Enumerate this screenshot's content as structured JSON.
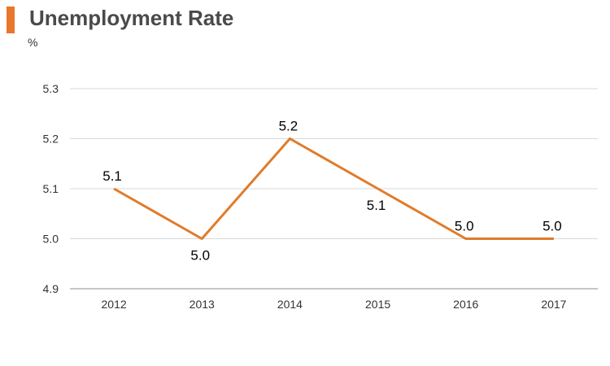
{
  "chart_data": {
    "type": "line",
    "title": "Unemployment Rate",
    "unit_label": "%",
    "categories": [
      "2012",
      "2013",
      "2014",
      "2015",
      "2016",
      "2017"
    ],
    "series": [
      {
        "values": [
          5.1,
          5.0,
          5.2,
          5.1,
          5.0,
          5.0
        ]
      }
    ],
    "data_labels": [
      "5.1",
      "5.0",
      "5.2",
      "5.1",
      "5.0",
      "5.0"
    ],
    "y_ticks": [
      "4.9",
      "5.0",
      "5.1",
      "5.2",
      "5.3"
    ],
    "ylim": [
      4.9,
      5.3
    ],
    "grid": true,
    "legend": "none",
    "colors": {
      "line": "#e07b2a",
      "accent": "#e8762c",
      "grid": "#d9d9d9",
      "axis": "#8c8c8c"
    }
  }
}
